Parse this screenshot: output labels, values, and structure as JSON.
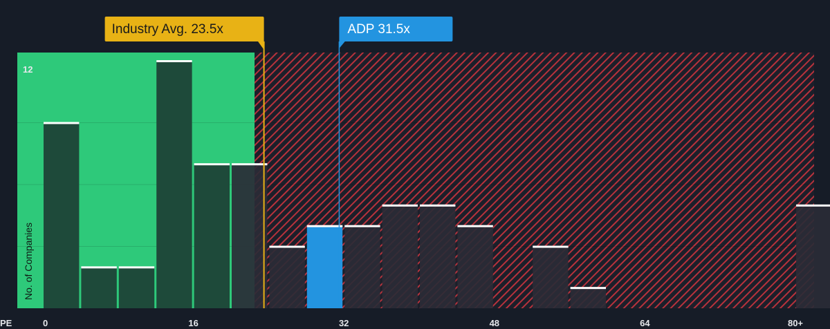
{
  "chart_data": {
    "type": "bar",
    "xlabel": "PE",
    "ylabel": "No. of Companies",
    "x_ticks": [
      {
        "value": 0,
        "label": "0"
      },
      {
        "value": 16,
        "label": "16"
      },
      {
        "value": 32,
        "label": "32"
      },
      {
        "value": 48,
        "label": "48"
      },
      {
        "value": 64,
        "label": "64"
      },
      {
        "value": 80,
        "label": "80+"
      }
    ],
    "y_ticks": [
      {
        "value": 12,
        "label": "12"
      }
    ],
    "xlim": [
      0,
      81
    ],
    "ylim": [
      0,
      12
    ],
    "bin_width": 4,
    "bins": [
      {
        "start": 0,
        "count": 9
      },
      {
        "start": 4,
        "count": 2
      },
      {
        "start": 8,
        "count": 2
      },
      {
        "start": 12,
        "count": 12
      },
      {
        "start": 16,
        "count": 7
      },
      {
        "start": 20,
        "count": 7
      },
      {
        "start": 24,
        "count": 3
      },
      {
        "start": 28,
        "count": 4
      },
      {
        "start": 32,
        "count": 4
      },
      {
        "start": 36,
        "count": 5
      },
      {
        "start": 40,
        "count": 5
      },
      {
        "start": 44,
        "count": 4
      },
      {
        "start": 48,
        "count": 0
      },
      {
        "start": 52,
        "count": 3
      },
      {
        "start": 56,
        "count": 1
      },
      {
        "start": 60,
        "count": 0
      },
      {
        "start": 64,
        "count": 0
      },
      {
        "start": 68,
        "count": 0
      },
      {
        "start": 72,
        "count": 0
      },
      {
        "start": 76,
        "count": 0
      },
      {
        "start": 80,
        "count": 5
      }
    ],
    "highlight_bin_start": 28,
    "fair_zone_end": 22.5,
    "industry": {
      "label": "Industry Avg. 23.5x",
      "value": 23.5
    },
    "company": {
      "label": "ADP 31.5x",
      "value": 31.5
    },
    "grid": true,
    "colors": {
      "background": "#161c27",
      "fair_zone": "#2ec97a",
      "bar_fair": "#1e4a3a",
      "bar_expensive": "#2a2b36",
      "bar_highlight": "#2394e0",
      "bar_cap": "#ffffff",
      "hatch": "#c4353f",
      "industry": "#e8b215",
      "company": "#2394e0"
    }
  }
}
